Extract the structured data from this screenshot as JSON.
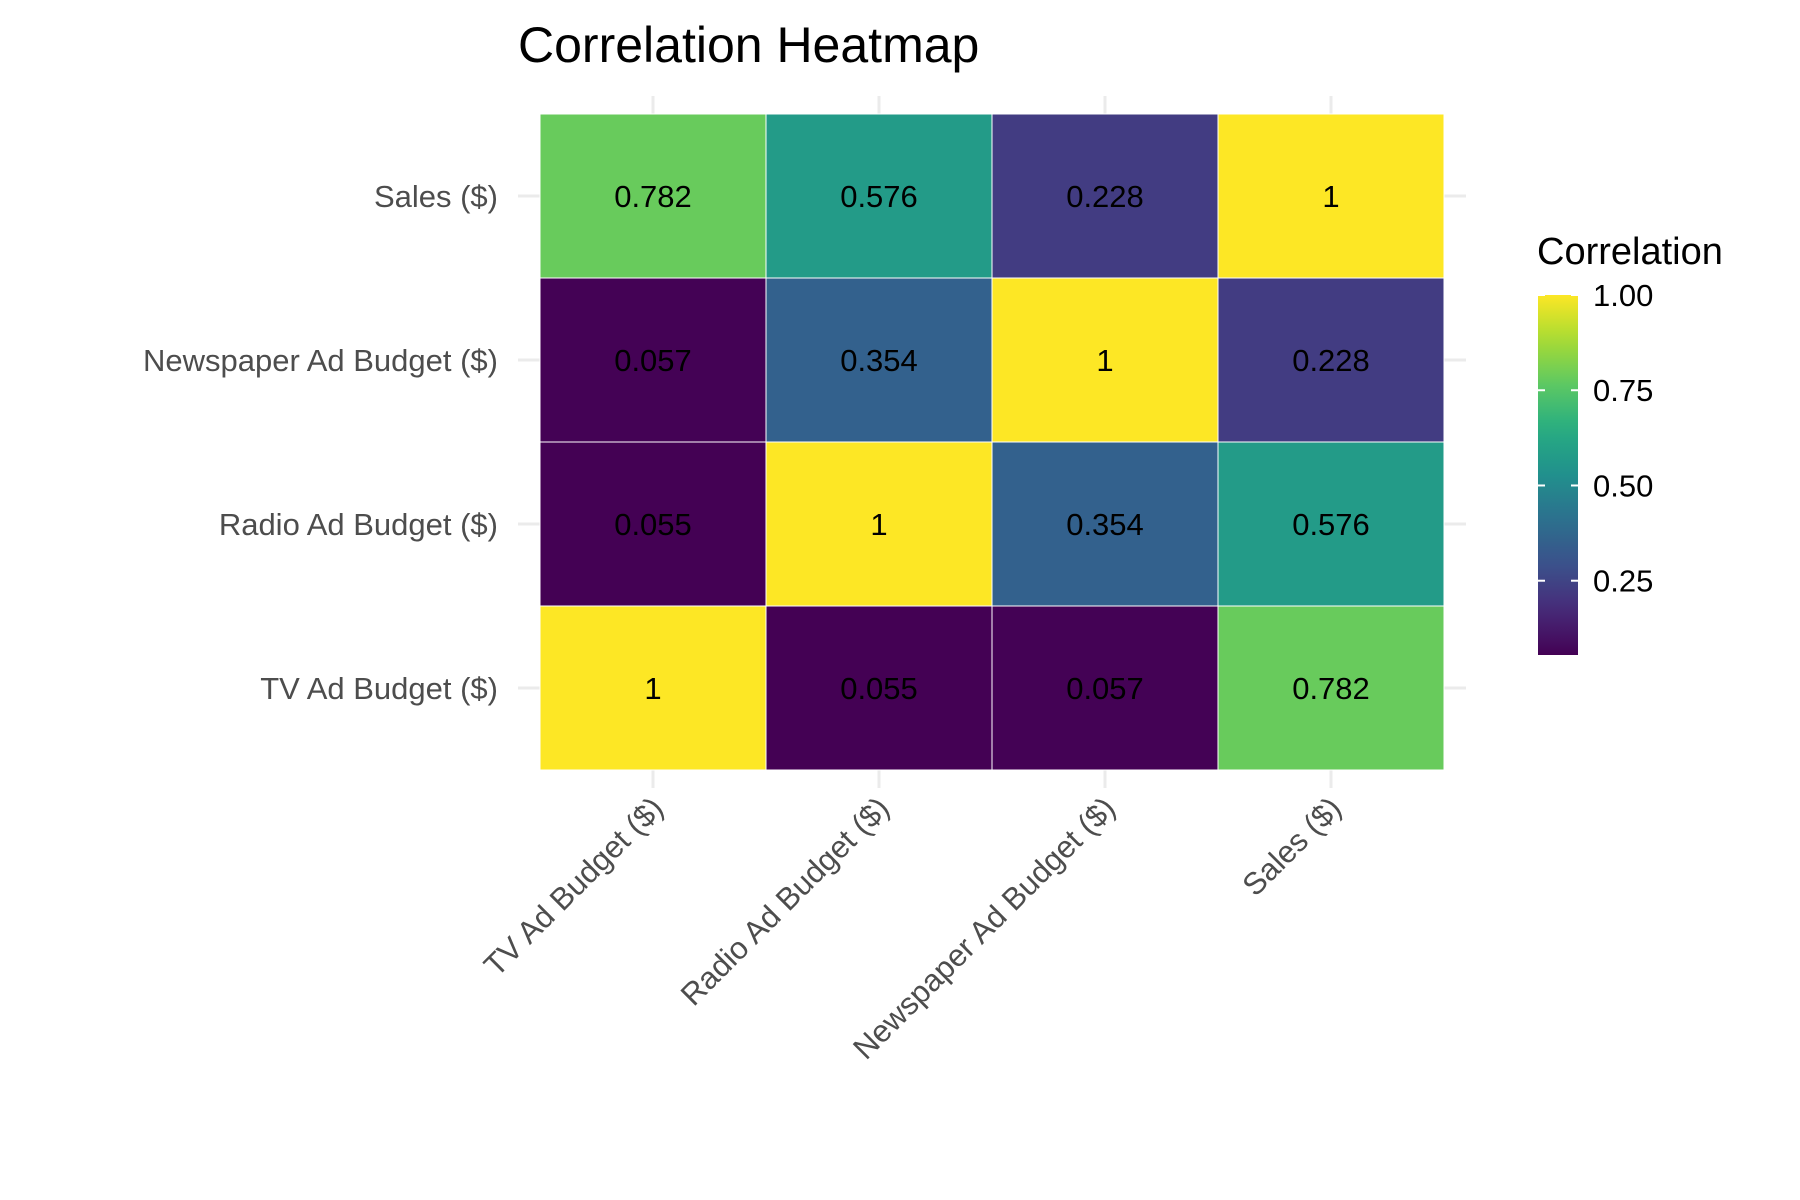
{
  "chart_data": {
    "type": "heatmap",
    "title": "Correlation Heatmap",
    "xlabel": "",
    "ylabel": "",
    "x_categories": [
      "TV Ad Budget ($)",
      "Radio Ad Budget ($)",
      "Newspaper Ad Budget ($)",
      "Sales ($)"
    ],
    "y_categories": [
      "TV Ad Budget ($)",
      "Radio Ad Budget ($)",
      "Newspaper Ad Budget ($)",
      "Sales ($)"
    ],
    "values": [
      [
        1,
        0.055,
        0.057,
        0.782
      ],
      [
        0.055,
        1,
        0.354,
        0.576
      ],
      [
        0.057,
        0.354,
        1,
        0.228
      ],
      [
        0.782,
        0.576,
        0.228,
        1
      ]
    ],
    "cell_labels": [
      [
        "1",
        "0.055",
        "0.057",
        "0.782"
      ],
      [
        "0.055",
        "1",
        "0.354",
        "0.576"
      ],
      [
        "0.057",
        "0.354",
        "1",
        "0.228"
      ],
      [
        "0.782",
        "0.576",
        "0.228",
        "1"
      ]
    ],
    "legend": {
      "title": "Correlation",
      "placement": "right",
      "range": [
        0.055,
        1
      ],
      "ticks": [
        0.25,
        0.5,
        0.75,
        1.0
      ],
      "tick_labels": [
        "0.25",
        "0.50",
        "0.75",
        "1.00"
      ]
    },
    "colormap": "viridis",
    "grid": true,
    "colors": {
      "grid": "#ebebeb",
      "cell_border": "#ffffff",
      "axis_text": "#4d4d4d"
    }
  }
}
